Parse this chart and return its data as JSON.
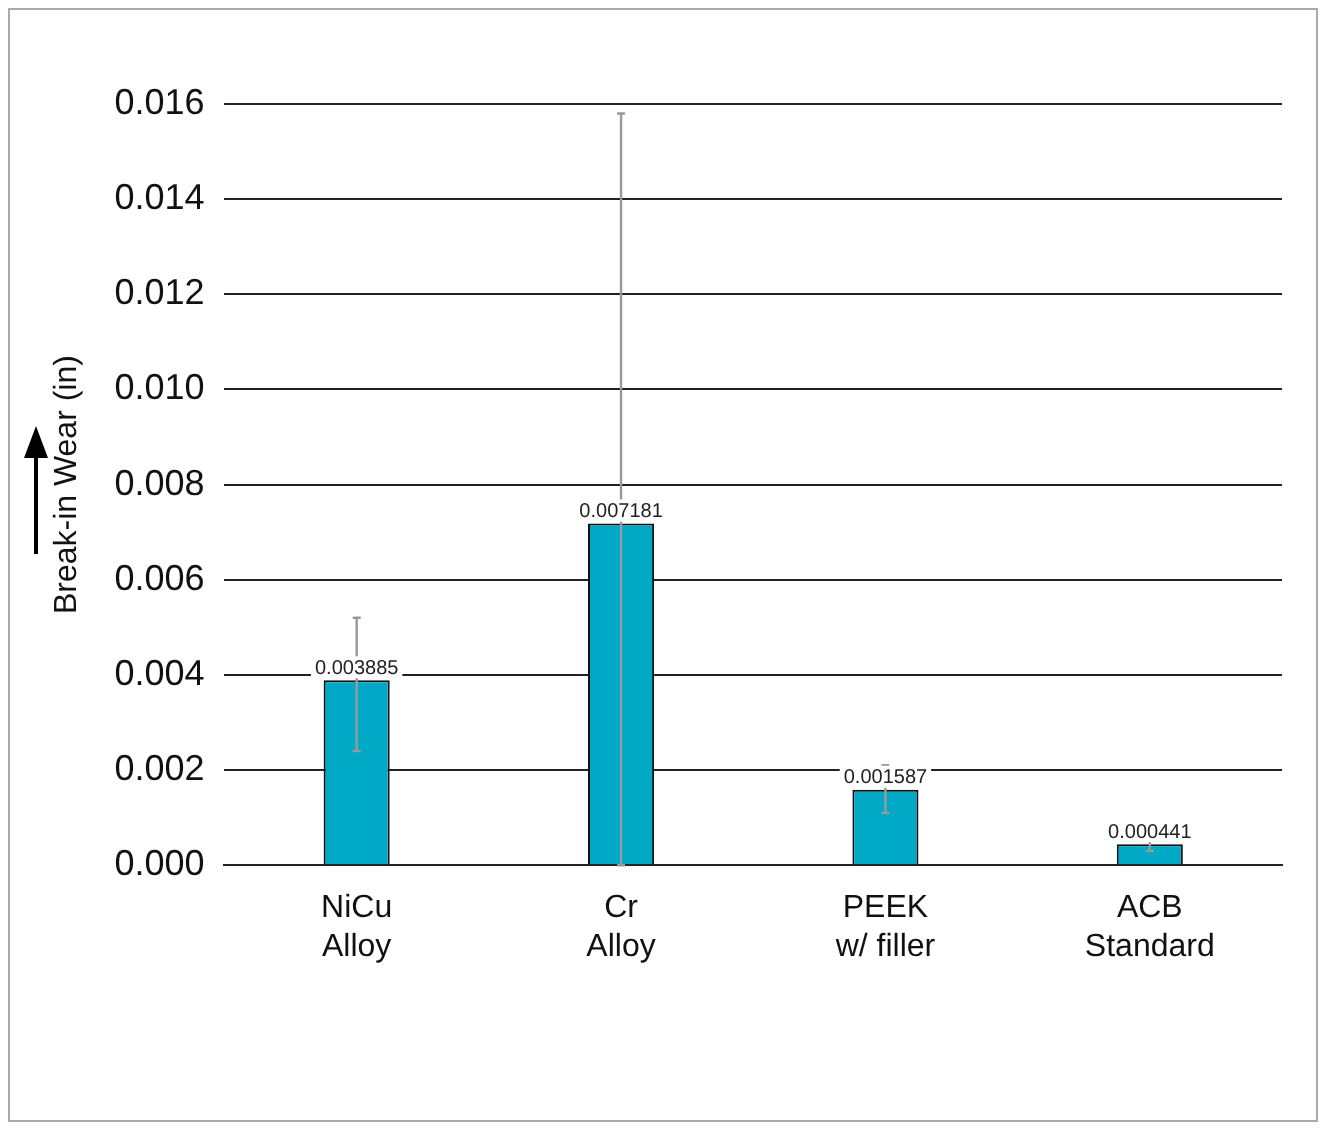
{
  "chart_data": {
    "type": "bar",
    "ylabel": "Break-in Wear (in)",
    "categories": [
      "NiCu\nAlloy",
      "Cr\nAlloy",
      "PEEK\nw/ filler",
      "ACB\nStandard"
    ],
    "values": [
      0.003885,
      0.007181,
      0.001587,
      0.000441
    ],
    "errors": [
      [
        0.0024,
        0.0052
      ],
      [
        0,
        0.0158
      ],
      [
        0.0011,
        0.0021
      ],
      [
        0.0003,
        0.0006
      ]
    ],
    "color": "#00a9c6",
    "data_labels": true,
    "ylim": [
      0,
      0.016
    ],
    "yticks": [
      {
        "value": 0,
        "label": "0.000"
      },
      {
        "value": 0.002,
        "label": "0.002"
      },
      {
        "value": 0.004,
        "label": "0.004"
      },
      {
        "value": 0.006,
        "label": "0.006"
      },
      {
        "value": 0.008,
        "label": "0.008"
      },
      {
        "value": 0.01,
        "label": "0.010"
      },
      {
        "value": 0.012,
        "label": "0.012"
      },
      {
        "value": 0.014,
        "label": "0.014"
      },
      {
        "value": 0.016,
        "label": "0.016"
      }
    ],
    "grid": "y"
  }
}
